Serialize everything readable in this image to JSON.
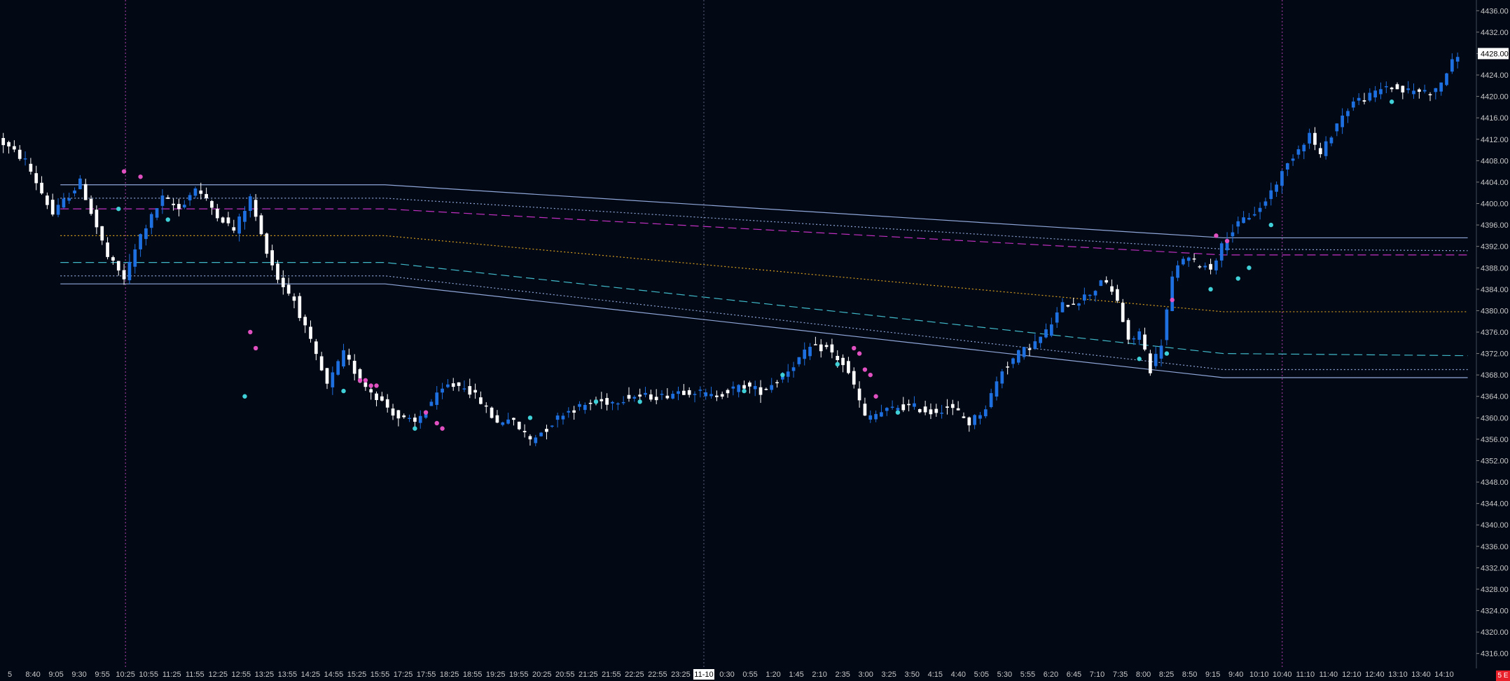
{
  "chart_data": {
    "type": "candlestick",
    "instrument_badge": "5 E",
    "ylim": [
      4314,
      4438
    ],
    "y_ticks": [
      4316,
      4320,
      4324,
      4328,
      4332,
      4336,
      4340,
      4344,
      4348,
      4352,
      4356,
      4360,
      4364,
      4368,
      4372,
      4376,
      4380,
      4384,
      4388,
      4392,
      4396,
      4400,
      4404,
      4408,
      4412,
      4416,
      4420,
      4424,
      4428,
      4432,
      4436
    ],
    "last_price": "4428.00",
    "x_labels": [
      "5",
      "8:40",
      "9:05",
      "9:30",
      "9:55",
      "10:25",
      "10:55",
      "11:25",
      "11:55",
      "12:25",
      "12:55",
      "13:25",
      "13:55",
      "14:25",
      "14:55",
      "15:25",
      "15:55",
      "17:25",
      "17:55",
      "18:25",
      "18:55",
      "19:25",
      "19:55",
      "20:25",
      "20:55",
      "21:25",
      "21:55",
      "22:25",
      "22:55",
      "23:25",
      "11-10",
      "0:30",
      "0:55",
      "1:20",
      "1:45",
      "2:10",
      "2:35",
      "3:00",
      "3:25",
      "3:50",
      "4:15",
      "4:40",
      "5:05",
      "5:30",
      "5:55",
      "6:20",
      "6:45",
      "7:10",
      "7:35",
      "8:00",
      "8:25",
      "8:50",
      "9:15",
      "9:40",
      "10:10",
      "10:40",
      "11:10",
      "11:40",
      "12:10",
      "12:40",
      "13:10",
      "13:40",
      "14:10"
    ],
    "highlighted_x_label": "11-10",
    "session_separators_at_label": [
      "10:25",
      "11-10",
      "10:40"
    ],
    "price_path": [
      [
        0,
        4412
      ],
      [
        5,
        4408
      ],
      [
        10,
        4398
      ],
      [
        15,
        4404
      ],
      [
        20,
        4390
      ],
      [
        23,
        4386
      ],
      [
        26,
        4394
      ],
      [
        30,
        4401
      ],
      [
        33,
        4399
      ],
      [
        36,
        4403
      ],
      [
        40,
        4398
      ],
      [
        43,
        4395
      ],
      [
        46,
        4401
      ],
      [
        48,
        4394
      ],
      [
        51,
        4386
      ],
      [
        54,
        4382
      ],
      [
        57,
        4374
      ],
      [
        60,
        4366
      ],
      [
        63,
        4372
      ],
      [
        66,
        4367
      ],
      [
        70,
        4363
      ],
      [
        73,
        4360
      ],
      [
        76,
        4359
      ],
      [
        79,
        4363
      ],
      [
        82,
        4366
      ],
      [
        85,
        4366
      ],
      [
        88,
        4363
      ],
      [
        91,
        4359
      ],
      [
        93,
        4360
      ],
      [
        95,
        4358
      ],
      [
        97,
        4356
      ],
      [
        100,
        4358
      ],
      [
        103,
        4361
      ],
      [
        106,
        4362
      ],
      [
        109,
        4363
      ],
      [
        112,
        4363
      ],
      [
        115,
        4364
      ],
      [
        118,
        4364
      ],
      [
        121,
        4364
      ],
      [
        124,
        4365
      ],
      [
        127,
        4365
      ],
      [
        130,
        4364
      ],
      [
        133,
        4365
      ],
      [
        136,
        4366
      ],
      [
        139,
        4365
      ],
      [
        142,
        4367
      ],
      [
        145,
        4370
      ],
      [
        148,
        4373
      ],
      [
        151,
        4373
      ],
      [
        154,
        4370
      ],
      [
        156,
        4366
      ],
      [
        158,
        4360
      ],
      [
        161,
        4361
      ],
      [
        164,
        4362
      ],
      [
        167,
        4362
      ],
      [
        170,
        4361
      ],
      [
        173,
        4362
      ],
      [
        175,
        4361
      ],
      [
        177,
        4359
      ],
      [
        180,
        4362
      ],
      [
        183,
        4369
      ],
      [
        186,
        4372
      ],
      [
        189,
        4374
      ],
      [
        191,
        4376
      ],
      [
        194,
        4381
      ],
      [
        197,
        4382
      ],
      [
        200,
        4384
      ],
      [
        201,
        4386
      ],
      [
        204,
        4382
      ],
      [
        206,
        4374
      ],
      [
        208,
        4376
      ],
      [
        210,
        4369
      ],
      [
        212,
        4374
      ],
      [
        214,
        4386
      ],
      [
        216,
        4390
      ],
      [
        218,
        4389
      ],
      [
        221,
        4388
      ],
      [
        224,
        4394
      ],
      [
        227,
        4397
      ],
      [
        230,
        4399
      ],
      [
        233,
        4404
      ],
      [
        236,
        4409
      ],
      [
        239,
        4413
      ],
      [
        241,
        4409
      ],
      [
        244,
        4415
      ],
      [
        247,
        4419
      ],
      [
        250,
        4420
      ],
      [
        253,
        4422
      ],
      [
        256,
        4421
      ],
      [
        259,
        4421
      ],
      [
        262,
        4421
      ],
      [
        266,
        4428
      ]
    ],
    "price_path_x_range": [
      0,
      266
    ],
    "bar_count": 266,
    "levels": [
      {
        "name": "upper-band",
        "style": "solid",
        "color": "#8fa6d8",
        "points": [
          [
            0.04,
            4403.5
          ],
          [
            0.255,
            4403.5
          ],
          [
            0.81,
            4393.6
          ],
          [
            0.972,
            4393.6
          ]
        ]
      },
      {
        "name": "upper-band-inner",
        "style": "dotted",
        "color": "#8fa6d8",
        "points": [
          [
            0.04,
            4401
          ],
          [
            0.255,
            4401
          ],
          [
            0.81,
            4391.5
          ],
          [
            0.972,
            4391.2
          ]
        ]
      },
      {
        "name": "upper-mid",
        "style": "dashed",
        "color": "#c030c0",
        "points": [
          [
            0.04,
            4399
          ],
          [
            0.255,
            4399
          ],
          [
            0.81,
            4390.4
          ],
          [
            0.972,
            4390.4
          ]
        ]
      },
      {
        "name": "vwap-mid",
        "style": "dotted",
        "color": "#d8a020",
        "points": [
          [
            0.04,
            4394
          ],
          [
            0.255,
            4394
          ],
          [
            0.81,
            4379.8
          ],
          [
            0.972,
            4379.8
          ]
        ]
      },
      {
        "name": "lower-mid",
        "style": "dashed",
        "color": "#40b8c8",
        "points": [
          [
            0.04,
            4389
          ],
          [
            0.255,
            4389
          ],
          [
            0.81,
            4372
          ],
          [
            0.972,
            4371.6
          ]
        ]
      },
      {
        "name": "lower-band-inner",
        "style": "dotted",
        "color": "#8fa6d8",
        "points": [
          [
            0.04,
            4386.5
          ],
          [
            0.255,
            4386.5
          ],
          [
            0.81,
            4369
          ],
          [
            0.972,
            4369
          ]
        ]
      },
      {
        "name": "lower-band",
        "style": "solid",
        "color": "#8fa6d8",
        "points": [
          [
            0.04,
            4385
          ],
          [
            0.255,
            4385
          ],
          [
            0.81,
            4367.5
          ],
          [
            0.972,
            4367.5
          ]
        ]
      }
    ],
    "markers_pink": [
      [
        22,
        4406
      ],
      [
        25,
        4405
      ],
      [
        45,
        4376
      ],
      [
        46,
        4373
      ],
      [
        65,
        4367
      ],
      [
        66,
        4367
      ],
      [
        67,
        4366
      ],
      [
        68,
        4366
      ],
      [
        77,
        4361
      ],
      [
        79,
        4359
      ],
      [
        80,
        4358
      ],
      [
        155,
        4373
      ],
      [
        156,
        4372
      ],
      [
        157,
        4369
      ],
      [
        158,
        4368
      ],
      [
        159,
        4364
      ],
      [
        213,
        4382
      ],
      [
        221,
        4394
      ],
      [
        223,
        4393
      ]
    ],
    "markers_cyan": [
      [
        21,
        4399
      ],
      [
        30,
        4397
      ],
      [
        44,
        4364
      ],
      [
        62,
        4365
      ],
      [
        75,
        4358
      ],
      [
        96,
        4360
      ],
      [
        108,
        4363
      ],
      [
        116,
        4363
      ],
      [
        135,
        4365
      ],
      [
        142,
        4368
      ],
      [
        152,
        4370
      ],
      [
        163,
        4361
      ],
      [
        207,
        4371
      ],
      [
        212,
        4372
      ],
      [
        220,
        4384
      ],
      [
        225,
        4386
      ],
      [
        227,
        4388
      ],
      [
        231,
        4396
      ],
      [
        253,
        4419
      ]
    ],
    "colors": {
      "up": "#1e6fe0",
      "down": "#ffffff",
      "background": "#020814",
      "axis_text": "#c8c8c8",
      "separator": "#b040b0",
      "separator_mid": "#606080",
      "badge": "#e8202a"
    }
  }
}
